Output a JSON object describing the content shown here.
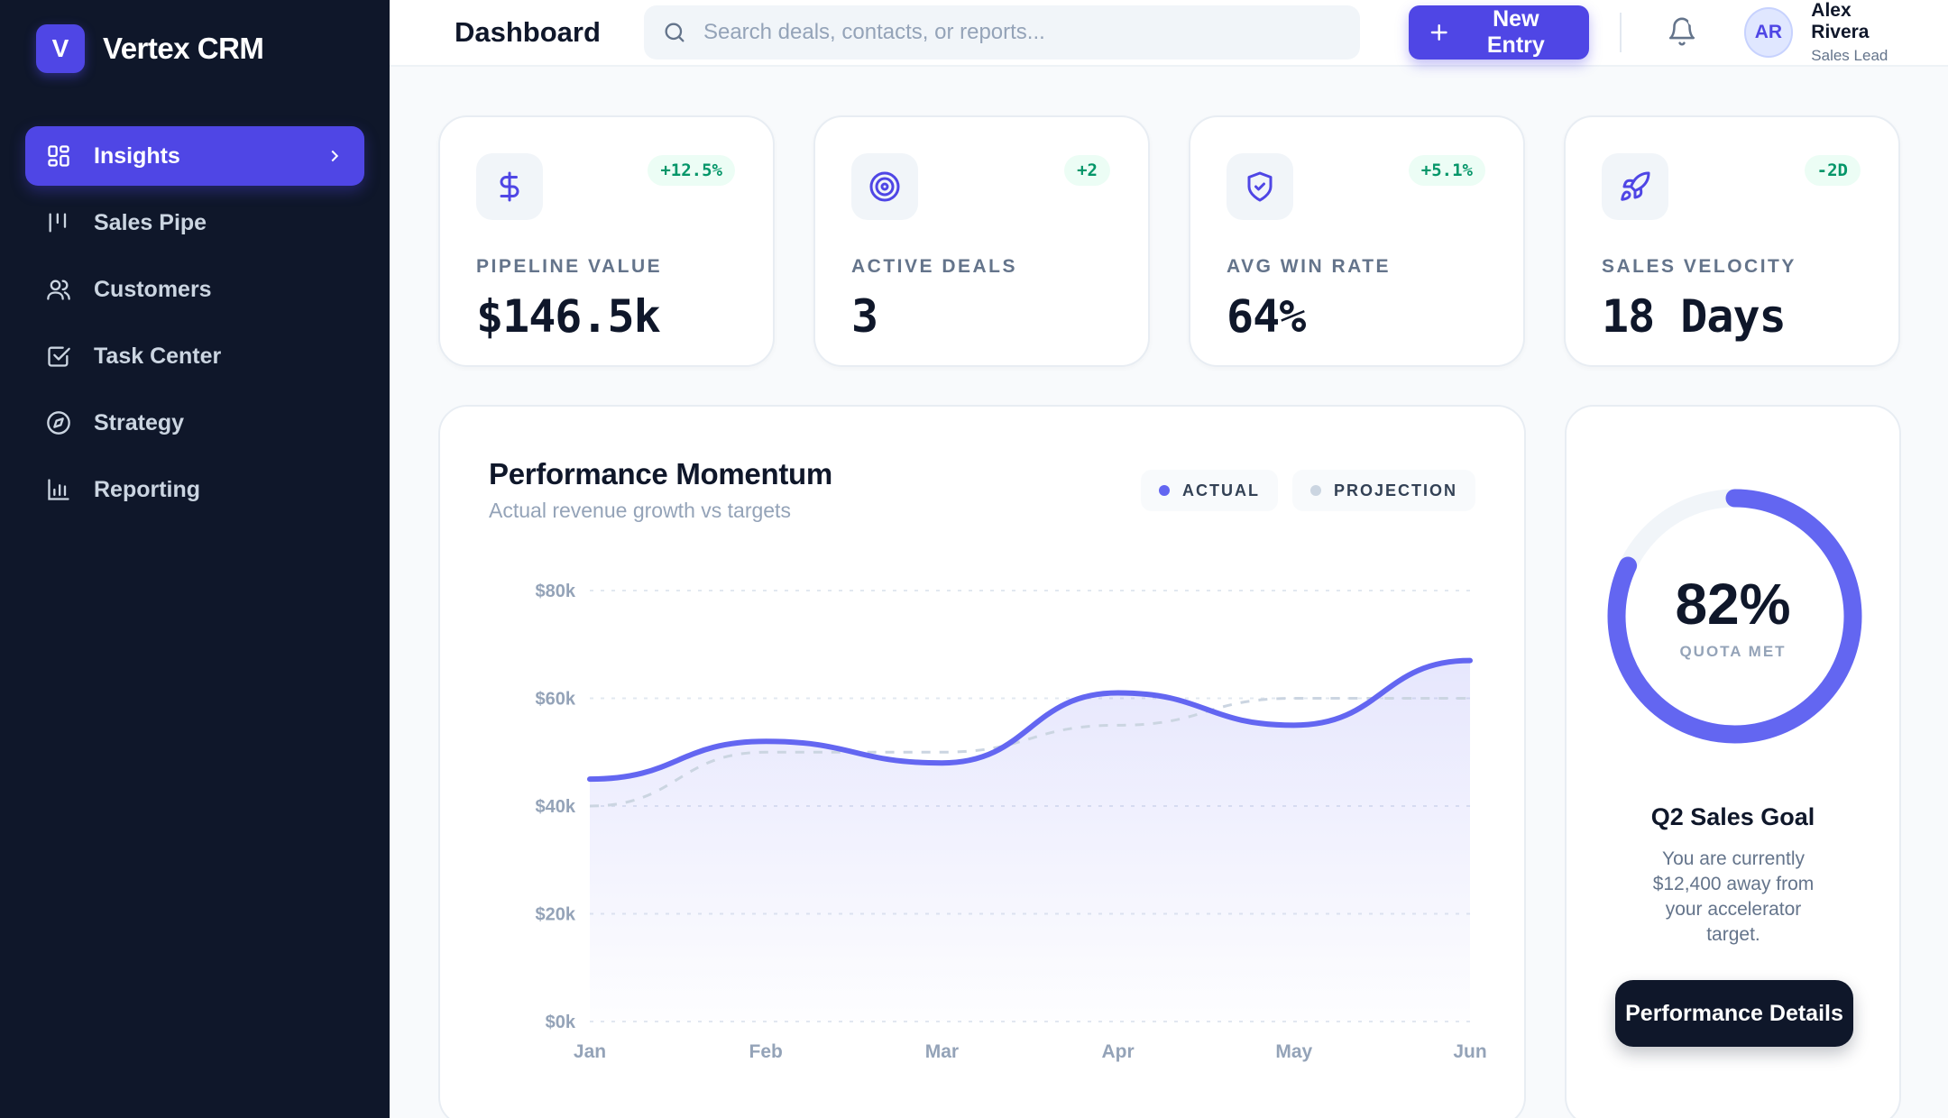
{
  "brand": {
    "logo_letter": "V",
    "name": "Vertex CRM"
  },
  "sidebar": {
    "items": [
      {
        "label": "Insights",
        "icon": "grid-icon",
        "active": true
      },
      {
        "label": "Sales Pipe",
        "icon": "pipeline-icon"
      },
      {
        "label": "Customers",
        "icon": "users-icon"
      },
      {
        "label": "Task Center",
        "icon": "checkbox-icon"
      },
      {
        "label": "Strategy",
        "icon": "compass-icon"
      },
      {
        "label": "Reporting",
        "icon": "bar-chart-icon"
      }
    ]
  },
  "header": {
    "title": "Dashboard",
    "search_placeholder": "Search deals, contacts, or reports...",
    "new_entry_label": "New Entry",
    "user": {
      "initials": "AR",
      "name": "Alex Rivera",
      "role": "Sales Lead"
    }
  },
  "stats": [
    {
      "label": "PIPELINE VALUE",
      "value": "$146.5k",
      "badge": "+12.5%",
      "icon": "dollar-icon"
    },
    {
      "label": "ACTIVE DEALS",
      "value": "3",
      "badge": "+2",
      "icon": "target-icon"
    },
    {
      "label": "AVG WIN RATE",
      "value": "64%",
      "badge": "+5.1%",
      "icon": "shield-check-icon"
    },
    {
      "label": "SALES VELOCITY",
      "value": "18 Days",
      "badge": "-2D",
      "icon": "rocket-icon"
    }
  ],
  "chart_panel": {
    "title": "Performance Momentum",
    "subtitle": "Actual revenue growth vs targets",
    "legend": [
      {
        "label": "ACTUAL",
        "color": "#6366f1"
      },
      {
        "label": "PROJECTION",
        "color": "#cbd5e1"
      }
    ]
  },
  "chart_data": {
    "type": "area",
    "x": [
      "Jan",
      "Feb",
      "Mar",
      "Apr",
      "May",
      "Jun"
    ],
    "yticks": [
      "$0k",
      "$20k",
      "$40k",
      "$60k",
      "$80k"
    ],
    "ylim": [
      0,
      80
    ],
    "grid": true,
    "series": [
      {
        "name": "ACTUAL",
        "values": [
          45,
          52,
          48,
          61,
          55,
          67
        ],
        "color": "#6366f1"
      },
      {
        "name": "PROJECTION",
        "values": [
          40,
          50,
          50,
          55,
          60,
          60
        ],
        "color": "#cbd5e1"
      }
    ]
  },
  "goal": {
    "percent": 82,
    "percent_label": "82%",
    "caption": "QUOTA MET",
    "title": "Q2 Sales Goal",
    "text": "You are currently $12,400 away from your accelerator target.",
    "button_label": "Performance Details",
    "color": "#6366f1"
  }
}
